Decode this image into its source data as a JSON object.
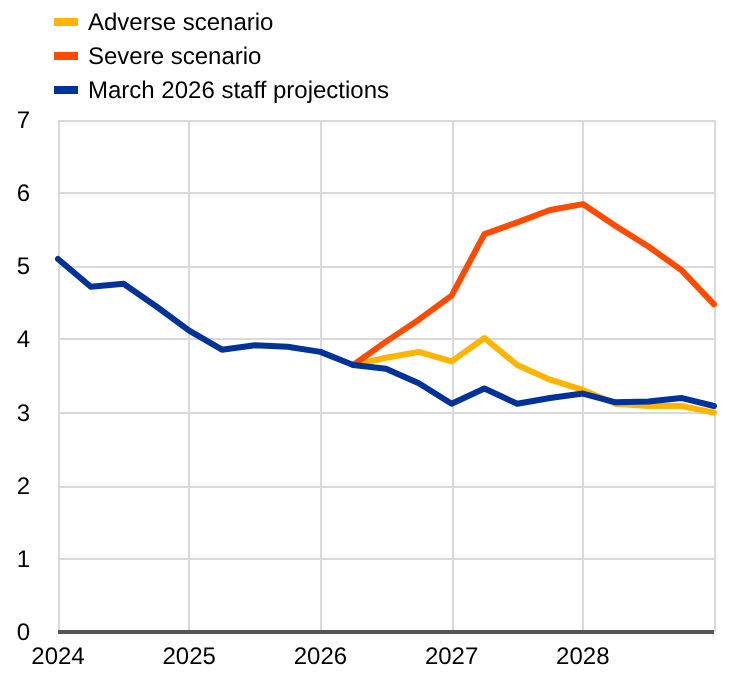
{
  "chart_data": {
    "type": "line",
    "x": [
      2024,
      2024.25,
      2024.5,
      2024.75,
      2025,
      2025.25,
      2025.5,
      2025.75,
      2026,
      2026.25,
      2026.5,
      2026.75,
      2027,
      2027.25,
      2027.5,
      2027.75,
      2028,
      2028.25,
      2028.5,
      2028.75,
      2029
    ],
    "series": [
      {
        "name": "Adverse scenario",
        "color": "#ffb400",
        "values": [
          null,
          null,
          null,
          null,
          null,
          null,
          null,
          null,
          null,
          3.65,
          3.75,
          3.83,
          3.7,
          4.02,
          3.65,
          3.45,
          3.31,
          3.12,
          3.09,
          3.09,
          3.0
        ]
      },
      {
        "name": "Severe scenario",
        "color": "#ff4b00",
        "values": [
          null,
          null,
          null,
          null,
          null,
          null,
          null,
          null,
          null,
          3.65,
          3.97,
          4.27,
          4.6,
          5.44,
          5.6,
          5.77,
          5.85,
          5.55,
          5.27,
          4.95,
          4.48
        ]
      },
      {
        "name": "March 2026 staff projections",
        "color": "#003299",
        "values": [
          5.1,
          4.72,
          4.76,
          4.45,
          4.12,
          3.86,
          3.92,
          3.9,
          3.83,
          3.65,
          3.6,
          3.4,
          3.12,
          3.33,
          3.12,
          3.2,
          3.26,
          3.14,
          3.15,
          3.2,
          3.09
        ]
      }
    ],
    "xlim": [
      2024,
      2029
    ],
    "xticks": [
      2024,
      2025,
      2026,
      2027,
      2028,
      {
        "value": 2029,
        "label": null
      }
    ],
    "ylim": [
      0,
      7
    ],
    "yticks": [
      0,
      1,
      2,
      3,
      4,
      5,
      6,
      7
    ],
    "grid": true,
    "legend": "top left",
    "marker": "none",
    "line_style": "solid"
  }
}
